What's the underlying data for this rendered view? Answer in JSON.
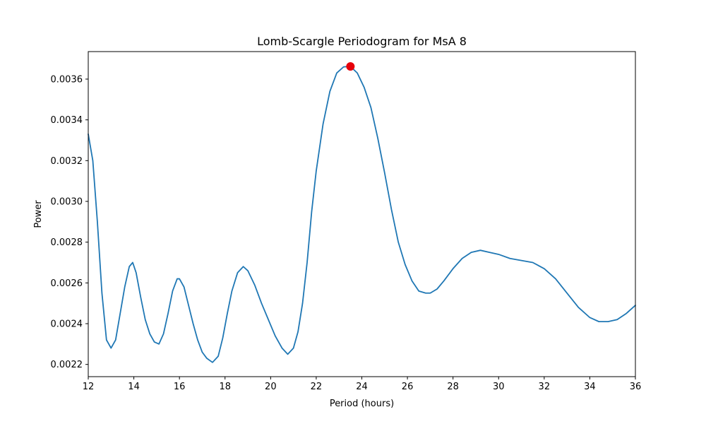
{
  "chart_data": {
    "type": "line",
    "title": "Lomb-Scargle Periodogram for MsA 8",
    "xlabel": "Period (hours)",
    "ylabel": "Power",
    "xlim": [
      12,
      36
    ],
    "ylim": [
      0.00214,
      0.003735
    ],
    "xticks": [
      12,
      14,
      16,
      18,
      20,
      22,
      24,
      26,
      28,
      30,
      32,
      34,
      36
    ],
    "yticks": [
      0.0022,
      0.0024,
      0.0026,
      0.0028,
      0.003,
      0.0032,
      0.0034,
      0.0036
    ],
    "ytick_labels": [
      "0.0022",
      "0.0024",
      "0.0026",
      "0.0028",
      "0.0030",
      "0.0032",
      "0.0034",
      "0.0036"
    ],
    "grid": false,
    "series": [
      {
        "color": "#1f77b4",
        "points": [
          [
            12.0,
            0.00333
          ],
          [
            12.2,
            0.0032
          ],
          [
            12.4,
            0.0029
          ],
          [
            12.6,
            0.00255
          ],
          [
            12.8,
            0.00232
          ],
          [
            13.0,
            0.00228
          ],
          [
            13.2,
            0.00232
          ],
          [
            13.4,
            0.00245
          ],
          [
            13.6,
            0.00258
          ],
          [
            13.8,
            0.00268
          ],
          [
            13.95,
            0.0027
          ],
          [
            14.1,
            0.00265
          ],
          [
            14.3,
            0.00253
          ],
          [
            14.5,
            0.00242
          ],
          [
            14.7,
            0.00235
          ],
          [
            14.9,
            0.00231
          ],
          [
            15.1,
            0.0023
          ],
          [
            15.3,
            0.00235
          ],
          [
            15.5,
            0.00245
          ],
          [
            15.7,
            0.00256
          ],
          [
            15.9,
            0.00262
          ],
          [
            16.0,
            0.00262
          ],
          [
            16.2,
            0.00258
          ],
          [
            16.4,
            0.00249
          ],
          [
            16.6,
            0.0024
          ],
          [
            16.8,
            0.00232
          ],
          [
            17.0,
            0.00226
          ],
          [
            17.2,
            0.00223
          ],
          [
            17.45,
            0.00221
          ],
          [
            17.7,
            0.00224
          ],
          [
            17.9,
            0.00233
          ],
          [
            18.1,
            0.00245
          ],
          [
            18.3,
            0.00256
          ],
          [
            18.55,
            0.00265
          ],
          [
            18.8,
            0.00268
          ],
          [
            19.0,
            0.00266
          ],
          [
            19.3,
            0.00259
          ],
          [
            19.6,
            0.0025
          ],
          [
            19.9,
            0.00242
          ],
          [
            20.2,
            0.00234
          ],
          [
            20.5,
            0.00228
          ],
          [
            20.75,
            0.00225
          ],
          [
            21.0,
            0.00228
          ],
          [
            21.2,
            0.00236
          ],
          [
            21.4,
            0.0025
          ],
          [
            21.6,
            0.0027
          ],
          [
            21.8,
            0.00295
          ],
          [
            22.0,
            0.00315
          ],
          [
            22.3,
            0.00338
          ],
          [
            22.6,
            0.00354
          ],
          [
            22.9,
            0.00363
          ],
          [
            23.2,
            0.00366
          ],
          [
            23.5,
            0.003662
          ],
          [
            23.8,
            0.00363
          ],
          [
            24.1,
            0.00356
          ],
          [
            24.4,
            0.00346
          ],
          [
            24.7,
            0.00331
          ],
          [
            25.0,
            0.00314
          ],
          [
            25.3,
            0.00296
          ],
          [
            25.6,
            0.0028
          ],
          [
            25.9,
            0.00269
          ],
          [
            26.2,
            0.00261
          ],
          [
            26.5,
            0.00256
          ],
          [
            26.8,
            0.00255
          ],
          [
            27.0,
            0.00255
          ],
          [
            27.3,
            0.00257
          ],
          [
            27.6,
            0.00261
          ],
          [
            28.0,
            0.00267
          ],
          [
            28.4,
            0.00272
          ],
          [
            28.8,
            0.00275
          ],
          [
            29.2,
            0.00276
          ],
          [
            29.6,
            0.00275
          ],
          [
            30.0,
            0.00274
          ],
          [
            30.5,
            0.00272
          ],
          [
            31.0,
            0.00271
          ],
          [
            31.5,
            0.0027
          ],
          [
            32.0,
            0.00267
          ],
          [
            32.5,
            0.00262
          ],
          [
            33.0,
            0.00255
          ],
          [
            33.5,
            0.00248
          ],
          [
            34.0,
            0.00243
          ],
          [
            34.4,
            0.00241
          ],
          [
            34.8,
            0.00241
          ],
          [
            35.2,
            0.00242
          ],
          [
            35.6,
            0.00245
          ],
          [
            36.0,
            0.00249
          ]
        ]
      }
    ],
    "highlight_point": {
      "x": 23.5,
      "y": 0.003662,
      "color": "#e6000b"
    }
  }
}
